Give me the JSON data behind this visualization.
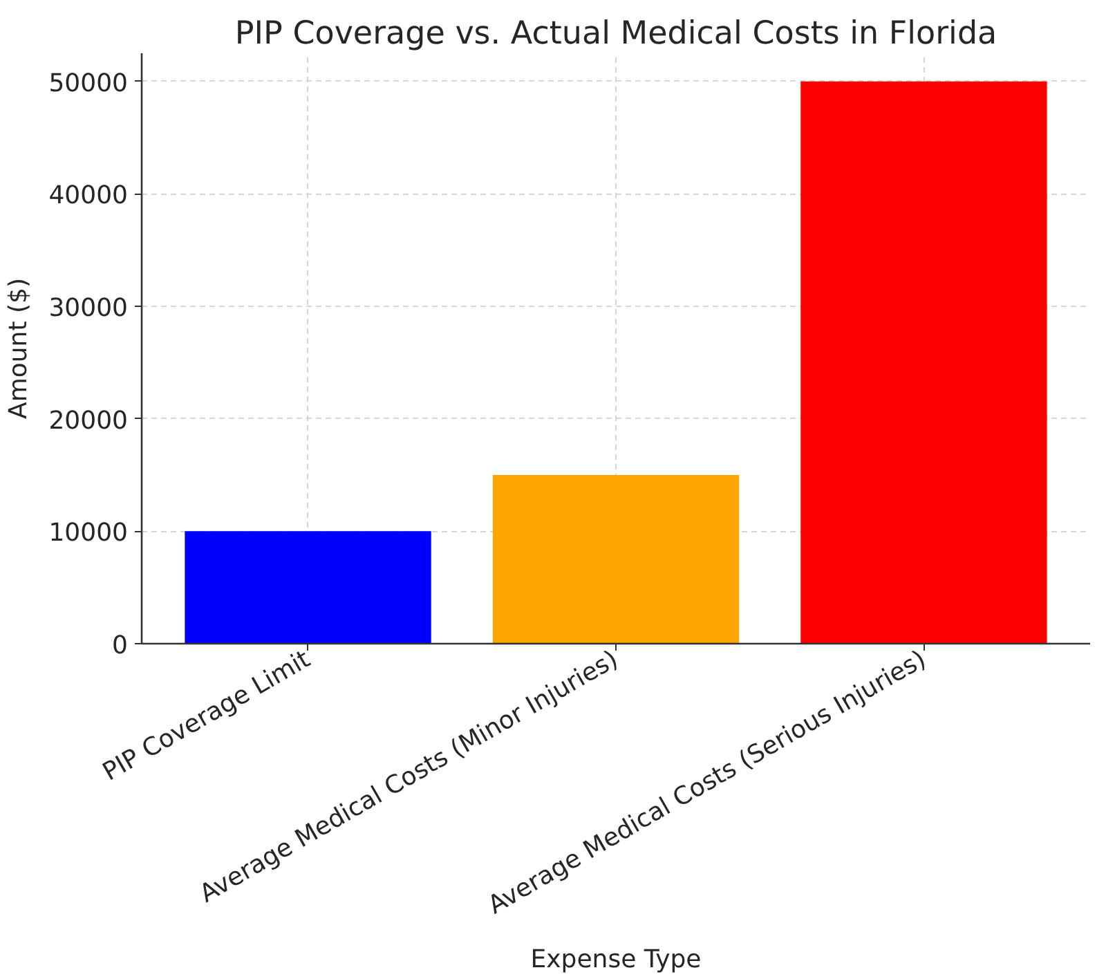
{
  "chart_data": {
    "type": "bar",
    "title": "PIP Coverage vs. Actual Medical Costs in Florida",
    "xlabel": "Expense Type",
    "ylabel": "Amount ($)",
    "categories": [
      "PIP Coverage Limit",
      "Average Medical Costs (Minor Injuries)",
      "Average Medical Costs (Serious Injuries)"
    ],
    "values": [
      10000,
      15000,
      50000
    ],
    "colors": [
      "#0000ff",
      "#ffa500",
      "#ff0000"
    ],
    "ylim": [
      0,
      52500
    ],
    "yticks": [
      0,
      10000,
      20000,
      30000,
      40000,
      50000
    ],
    "grid": true
  }
}
